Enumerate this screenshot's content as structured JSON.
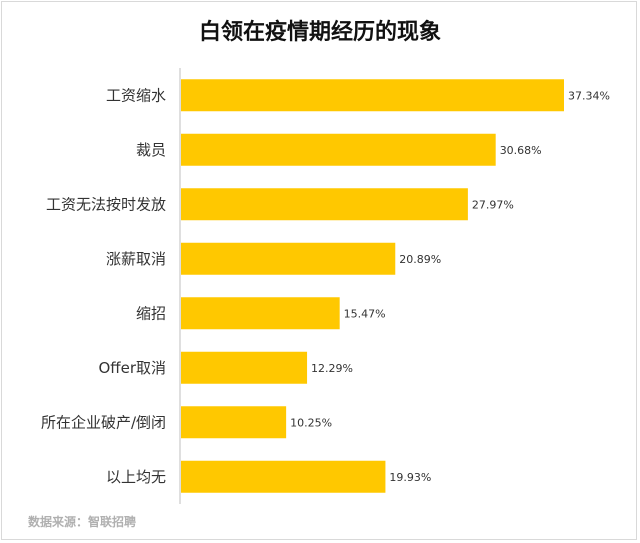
{
  "title": "白领在疫情期经历的现象",
  "source": "数据来源：智联招聘",
  "colors": {
    "bar": "#FFC800",
    "axis": "#bfbfbf",
    "text": "#333333"
  },
  "chart_data": {
    "type": "bar",
    "orientation": "horizontal",
    "title": "白领在疫情期经历的现象",
    "categories": [
      "工资缩水",
      "裁员",
      "工资无法按时发放",
      "涨薪取消",
      "缩招",
      "Offer取消",
      "所在企业破产/倒闭",
      "以上均无"
    ],
    "values": [
      37.34,
      30.68,
      27.97,
      20.89,
      15.47,
      12.29,
      10.25,
      19.93
    ],
    "value_labels": [
      "37.34%",
      "30.68%",
      "27.97%",
      "20.89%",
      "15.47%",
      "12.29%",
      "10.25%",
      "19.93%"
    ],
    "xlim": [
      0,
      40
    ],
    "grid": false,
    "legend": "none"
  }
}
